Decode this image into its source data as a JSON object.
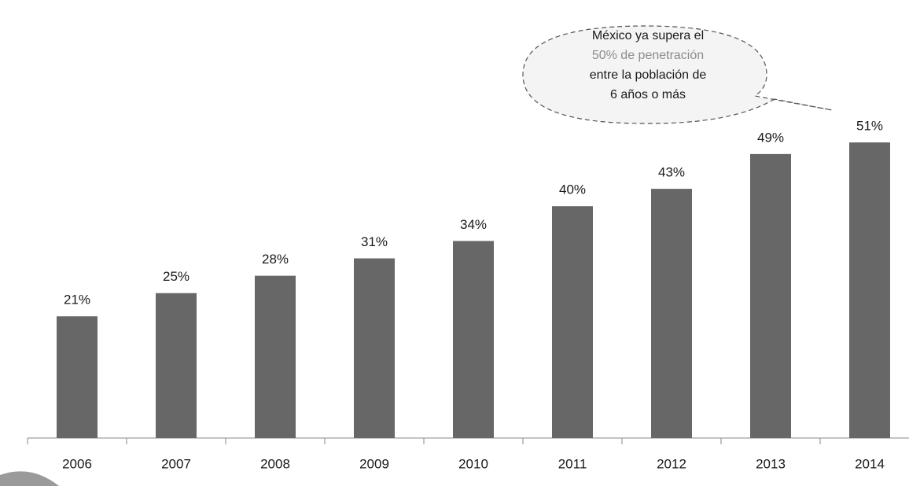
{
  "chart_data": {
    "type": "bar",
    "categories": [
      "2006",
      "2007",
      "2008",
      "2009",
      "2010",
      "2011",
      "2012",
      "2013",
      "2014"
    ],
    "values": [
      21,
      25,
      28,
      31,
      34,
      40,
      43,
      49,
      51
    ],
    "value_labels": [
      "21%",
      "25%",
      "28%",
      "31%",
      "34%",
      "40%",
      "43%",
      "49%",
      "51%"
    ],
    "color": "#676767",
    "annotation": [
      "México ya supera el",
      "50% de penetración",
      "entre la población de",
      "6 años o más"
    ],
    "annotation_highlight_color": "#8c8c8c"
  }
}
